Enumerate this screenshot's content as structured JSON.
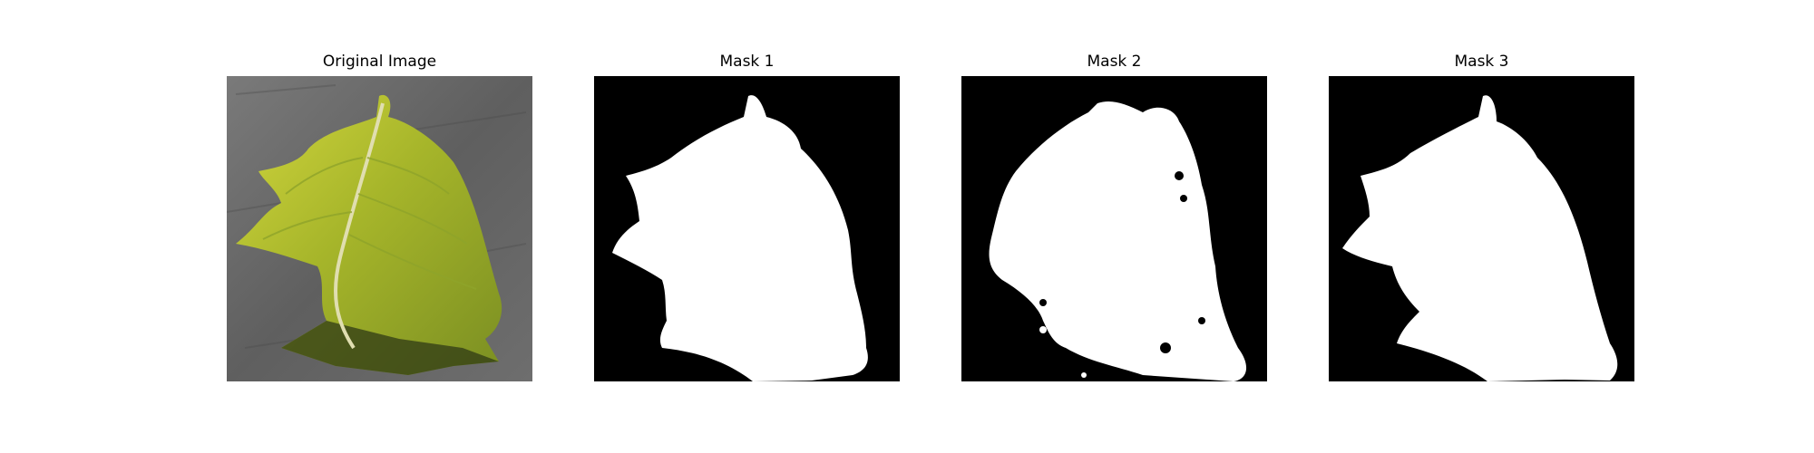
{
  "panels": [
    {
      "title": "Original Image",
      "kind": "photo"
    },
    {
      "title": "Mask 1",
      "kind": "mask"
    },
    {
      "title": "Mask 2",
      "kind": "mask"
    },
    {
      "title": "Mask 3",
      "kind": "mask"
    }
  ],
  "colors": {
    "mask_background": "#000000",
    "mask_foreground": "#ffffff",
    "surface": "#6f6f6f",
    "leaf_light": "#c9cf3a",
    "leaf_dark": "#6e8a1f",
    "vein": "#d9d9a6"
  }
}
